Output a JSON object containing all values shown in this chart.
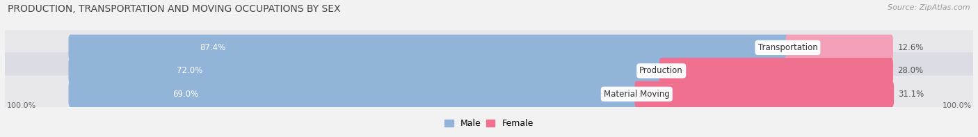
{
  "title": "PRODUCTION, TRANSPORTATION AND MOVING OCCUPATIONS BY SEX",
  "source": "Source: ZipAtlas.com",
  "categories": [
    "Transportation",
    "Production",
    "Material Moving"
  ],
  "male_values": [
    87.4,
    72.0,
    69.0
  ],
  "female_values": [
    12.6,
    28.0,
    31.1
  ],
  "male_color": "#92b4d8",
  "female_color": "#f07090",
  "female_light_color": "#f4a0b8",
  "background_color": "#f2f2f2",
  "row_bg_colors": [
    "#e8e8ec",
    "#dcdce4",
    "#e8e8ec"
  ],
  "legend_male_color": "#92b4d8",
  "legend_female_color": "#f07090",
  "bar_height": 0.62,
  "axis_label_left": "100.0%",
  "axis_label_right": "100.0%",
  "male_pct_color": "#ffffff",
  "female_pct_color": "#555555",
  "category_label_color": "#333333",
  "title_color": "#444444",
  "source_color": "#999999"
}
